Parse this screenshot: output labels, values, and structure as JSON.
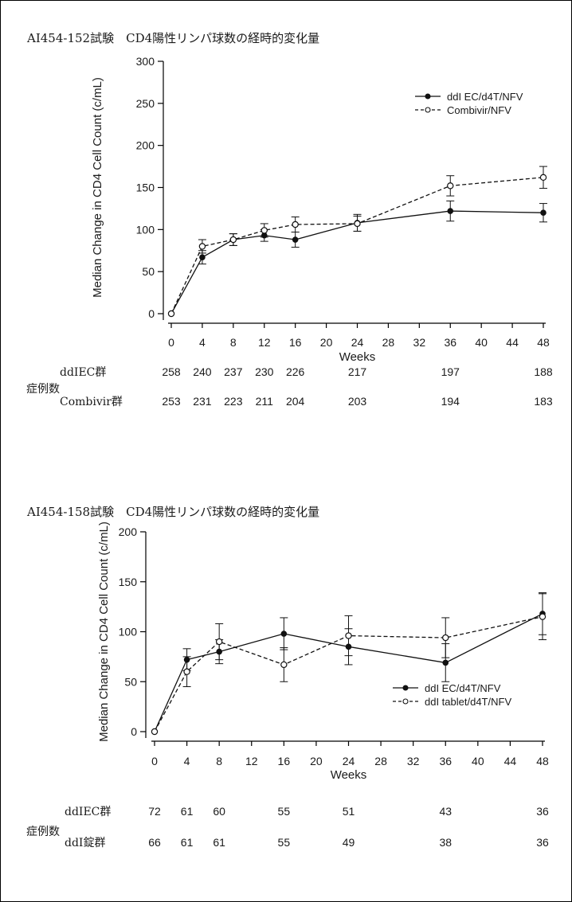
{
  "chart_data": [
    {
      "type": "line",
      "title": "AI454-152試験　CD4陽性リンパ球数の経時的変化量",
      "xlabel": "Weeks",
      "ylabel": "Median Change in CD4 Cell Count (c/mL)",
      "xlim": [
        0,
        48
      ],
      "ylim": [
        0,
        300
      ],
      "xticks": [
        0,
        4,
        8,
        12,
        16,
        20,
        24,
        28,
        32,
        36,
        40,
        44,
        48
      ],
      "yticks": [
        0,
        50,
        100,
        150,
        200,
        250,
        300
      ],
      "legend_position": "top-right",
      "series": [
        {
          "name": "ddI EC/d4T/NFV",
          "style": "solid-filled",
          "x": [
            0,
            4,
            8,
            12,
            16,
            24,
            36,
            48
          ],
          "y": [
            0,
            67,
            88,
            93,
            88,
            108,
            122,
            120
          ],
          "err": [
            0,
            8,
            7,
            7,
            9,
            10,
            12,
            11
          ]
        },
        {
          "name": "Combivir/NFV",
          "style": "dashed-open",
          "x": [
            0,
            4,
            8,
            12,
            16,
            24,
            36,
            48
          ],
          "y": [
            0,
            80,
            88,
            99,
            106,
            107,
            152,
            162
          ],
          "err": [
            0,
            8,
            7,
            8,
            9,
            9,
            12,
            13
          ]
        }
      ],
      "table": {
        "header": "症例数",
        "rows": [
          {
            "label": "ddIEC群",
            "x": [
              0,
              4,
              8,
              12,
              16,
              24,
              36,
              48
            ],
            "values": [
              "258",
              "240",
              "237",
              "230",
              "226",
              "217",
              "197",
              "188"
            ]
          },
          {
            "label": "Combivir群",
            "x": [
              0,
              4,
              8,
              12,
              16,
              24,
              36,
              48
            ],
            "values": [
              "253",
              "231",
              "223",
              "211",
              "204",
              "203",
              "194",
              "183"
            ]
          }
        ]
      }
    },
    {
      "type": "line",
      "title": "AI454-158試験　CD4陽性リンパ球数の経時的変化量",
      "xlabel": "Weeks",
      "ylabel": "Median Change in CD4 Cell Count (c/mL)",
      "xlim": [
        0,
        48
      ],
      "ylim": [
        0,
        200
      ],
      "xticks": [
        0,
        4,
        8,
        12,
        16,
        20,
        24,
        28,
        32,
        36,
        40,
        44,
        48
      ],
      "yticks": [
        0,
        50,
        100,
        150,
        200
      ],
      "legend_position": "bottom-right",
      "series": [
        {
          "name": "ddI EC/d4T/NFV",
          "style": "solid-filled",
          "x": [
            0,
            4,
            8,
            16,
            24,
            36,
            48
          ],
          "y": [
            0,
            72,
            80,
            98,
            85,
            69,
            118
          ],
          "err": [
            0,
            11,
            12,
            16,
            18,
            19,
            21
          ]
        },
        {
          "name": "ddI tablet/d4T/NFV",
          "style": "dashed-open",
          "x": [
            0,
            4,
            8,
            16,
            24,
            36,
            48
          ],
          "y": [
            0,
            60,
            90,
            67,
            96,
            94,
            115
          ],
          "err": [
            0,
            15,
            18,
            17,
            20,
            20,
            23
          ]
        }
      ],
      "table": {
        "header": "症例数",
        "rows": [
          {
            "label": "ddIEC群",
            "x": [
              0,
              4,
              8,
              16,
              24,
              36,
              48
            ],
            "values": [
              "72",
              "61",
              "60",
              "55",
              "51",
              "43",
              "36"
            ]
          },
          {
            "label": "ddI錠群",
            "x": [
              0,
              4,
              8,
              16,
              24,
              36,
              48
            ],
            "values": [
              "66",
              "61",
              "61",
              "55",
              "49",
              "38",
              "36"
            ]
          }
        ]
      }
    }
  ]
}
